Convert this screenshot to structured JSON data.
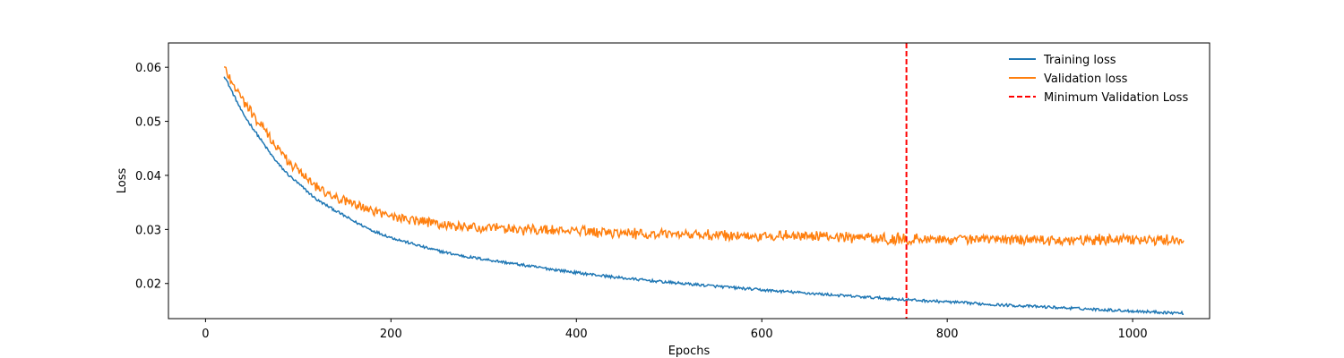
{
  "chart_data": {
    "type": "line",
    "xlabel": "Epochs",
    "ylabel": "Loss",
    "xlim": [
      -40,
      1083
    ],
    "ylim": [
      0.0135,
      0.0645
    ],
    "xticks": [
      0,
      200,
      400,
      600,
      800,
      1000
    ],
    "yticks": [
      0.02,
      0.03,
      0.04,
      0.05,
      0.06
    ],
    "ytick_labels": [
      "0.02",
      "0.03",
      "0.04",
      "0.05",
      "0.06"
    ],
    "grid": false,
    "legend_position": "top-right",
    "series": [
      {
        "name": "Training loss",
        "color": "#1f77b4",
        "x": [
          20,
          30,
          40,
          50,
          60,
          70,
          80,
          90,
          100,
          120,
          140,
          160,
          180,
          200,
          220,
          240,
          260,
          280,
          300,
          350,
          400,
          450,
          500,
          550,
          600,
          650,
          700,
          756,
          800,
          850,
          900,
          950,
          1000,
          1055
        ],
        "y": [
          0.0585,
          0.055,
          0.0515,
          0.049,
          0.0465,
          0.044,
          0.0418,
          0.04,
          0.0385,
          0.0355,
          0.0335,
          0.0315,
          0.0298,
          0.0285,
          0.0275,
          0.0265,
          0.0257,
          0.025,
          0.0245,
          0.0232,
          0.022,
          0.021,
          0.0202,
          0.0195,
          0.0188,
          0.0182,
          0.0176,
          0.017,
          0.0166,
          0.0161,
          0.0157,
          0.0153,
          0.0149,
          0.0145
        ]
      },
      {
        "name": "Validation loss",
        "color": "#ff7f0e",
        "x": [
          20,
          30,
          40,
          50,
          60,
          70,
          80,
          90,
          100,
          120,
          140,
          160,
          180,
          200,
          220,
          240,
          260,
          280,
          300,
          350,
          400,
          450,
          500,
          550,
          600,
          650,
          700,
          756,
          800,
          850,
          900,
          950,
          1000,
          1055
        ],
        "y": [
          0.06,
          0.057,
          0.054,
          0.0515,
          0.0492,
          0.0468,
          0.0445,
          0.0425,
          0.041,
          0.038,
          0.036,
          0.0345,
          0.0335,
          0.0325,
          0.0318,
          0.0312,
          0.0308,
          0.0305,
          0.0302,
          0.03,
          0.0297,
          0.0293,
          0.029,
          0.0289,
          0.0288,
          0.0287,
          0.0286,
          0.0282,
          0.0282,
          0.0281,
          0.0281,
          0.0281,
          0.0281,
          0.0281
        ]
      }
    ],
    "vline": {
      "name": "Minimum Validation Loss",
      "x": 756,
      "color": "#ff0000",
      "style": "dashed"
    }
  }
}
